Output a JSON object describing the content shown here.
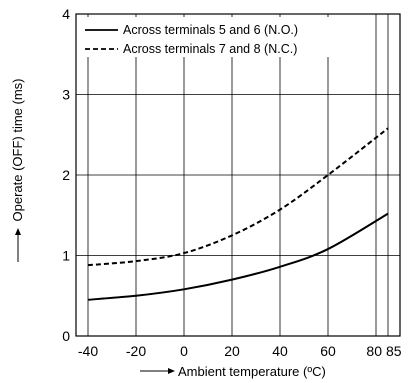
{
  "chart_data": {
    "type": "line",
    "xlabel": "Ambient temperature (ºC)",
    "ylabel": "Operate (OFF) time (ms)",
    "xlim": [
      -45,
      90
    ],
    "ylim": [
      0,
      4
    ],
    "x_ticks": [
      -40,
      -20,
      0,
      20,
      40,
      60,
      80,
      85
    ],
    "x_tick_labels": [
      "-40",
      "-20",
      "0",
      "20",
      "40",
      "60",
      "80",
      "85"
    ],
    "y_ticks": [
      0,
      1,
      2,
      3,
      4
    ],
    "y_tick_labels": [
      "0",
      "1",
      "2",
      "3",
      "4"
    ],
    "grid": true,
    "legend_position": "top-left",
    "series": [
      {
        "name": "Across terminals 5 and 6 (N.O.)",
        "style": "solid",
        "color": "#000000",
        "x": [
          -40,
          -20,
          0,
          20,
          40,
          60,
          85
        ],
        "y": [
          0.45,
          0.5,
          0.58,
          0.7,
          0.86,
          1.08,
          1.52
        ]
      },
      {
        "name": "Across terminals 7 and 8 (N.C.)",
        "style": "dashed",
        "color": "#000000",
        "x": [
          -40,
          -20,
          0,
          20,
          40,
          60,
          85
        ],
        "y": [
          0.88,
          0.93,
          1.03,
          1.25,
          1.57,
          2.0,
          2.58
        ]
      }
    ]
  }
}
